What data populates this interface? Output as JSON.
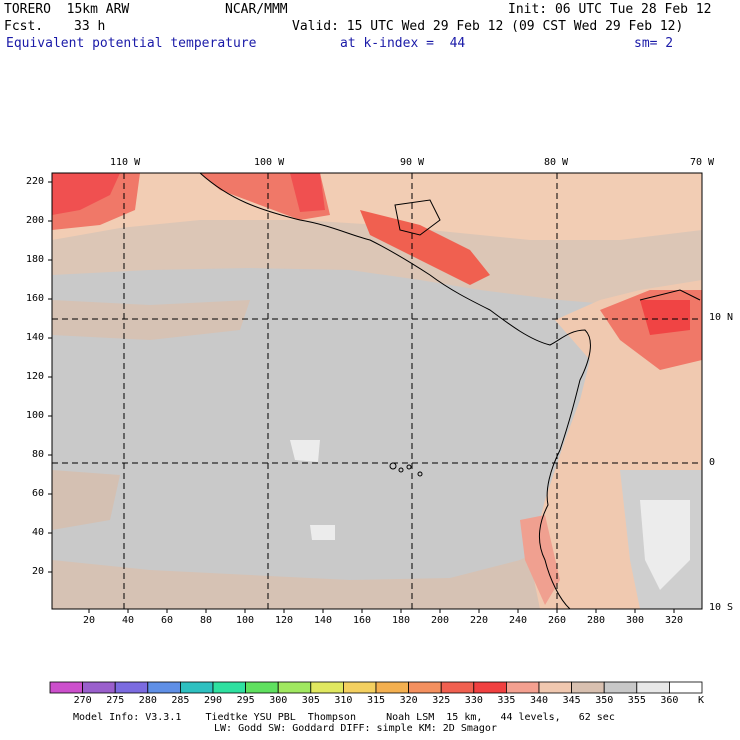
{
  "header": {
    "model": "TORERO  15km ARW",
    "fcst_label": "Fcst.",
    "fcst_value": "33 h",
    "org": "NCAR/MMM",
    "init": "Init: 06 UTC Tue 28 Feb 12",
    "valid": "Valid: 15 UTC Wed 29 Feb 12 (09 CST Wed 29 Feb 12)",
    "field": "Equivalent potential temperature",
    "level": "at k-index =  44",
    "smooth": "sm= 2"
  },
  "map": {
    "lon_labels": [
      "110 W",
      "100 W",
      "90 W",
      "80 W",
      "70 W"
    ],
    "lat_labels": [
      "10 N",
      "0",
      "10 S"
    ],
    "y_ticks": [
      "220",
      "200",
      "180",
      "160",
      "140",
      "120",
      "100",
      "80",
      "60",
      "40",
      "20"
    ],
    "x_ticks": [
      "20",
      "40",
      "60",
      "80",
      "100",
      "120",
      "140",
      "160",
      "180",
      "200",
      "220",
      "240",
      "260",
      "280",
      "300",
      "320"
    ]
  },
  "colorbar": {
    "unit": "K",
    "levels": [
      "270",
      "275",
      "280",
      "285",
      "290",
      "295",
      "300",
      "305",
      "310",
      "315",
      "320",
      "325",
      "330",
      "335",
      "340",
      "345",
      "350",
      "355",
      "360"
    ],
    "colors": [
      "#cc4fcc",
      "#9a5fcc",
      "#7b6be0",
      "#5f8fe6",
      "#2ec0c0",
      "#2ee0a0",
      "#5fe05f",
      "#a0e860",
      "#e0e860",
      "#f4d060",
      "#f4b050",
      "#f4905f",
      "#f06050",
      "#f04040",
      "#f4a090",
      "#f0c8b0",
      "#d8c0b0",
      "#c8c8c8",
      "#e8e8e8",
      "#ffffff"
    ]
  },
  "footer": {
    "line1": "Model Info: V3.3.1    Tiedtke YSU PBL  Thompson     Noah LSM  15 km,   44 levels,   62 sec",
    "line2": "LW: Godd SW: Goddard DIFF: simple KM: 2D Smagor"
  }
}
